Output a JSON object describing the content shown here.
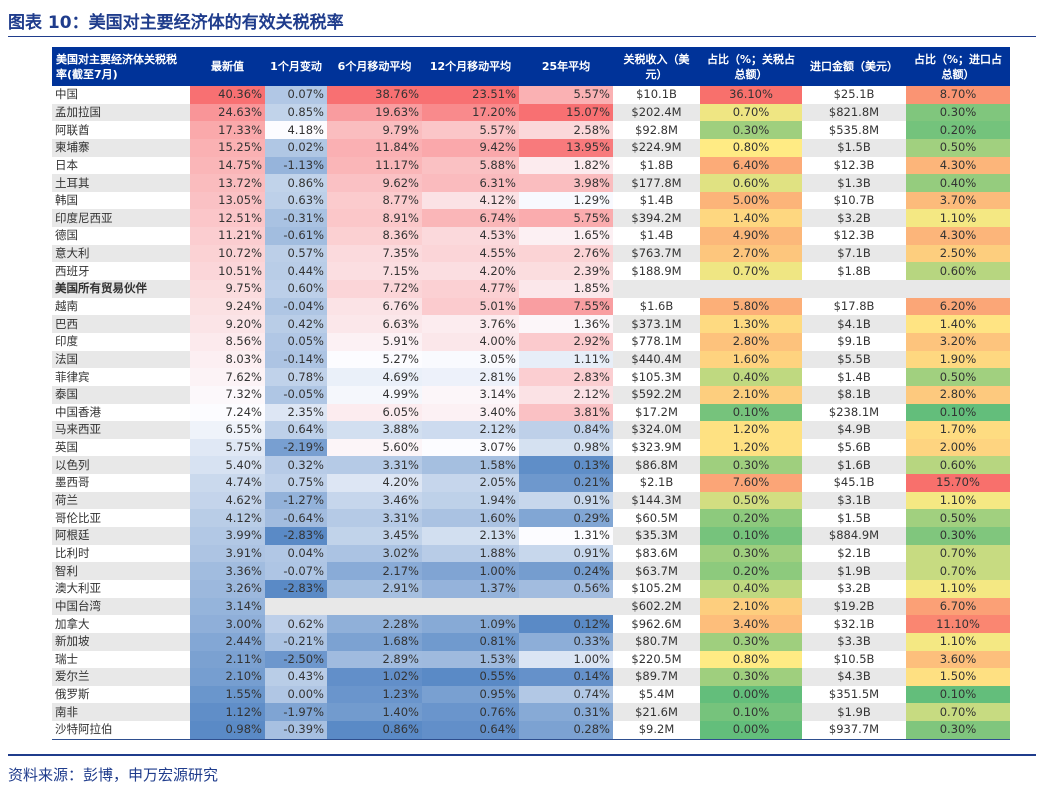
{
  "title": "图表 10：美国对主要经济体的有效关税税率",
  "source": "资料来源：彭博，申万宏源研究",
  "colors": {
    "header_bg": "#003399",
    "rate_low": "#5a8ac6",
    "rate_mid": "#fcfcff",
    "rate_high": "#f8696b",
    "share_low": "#63be7b",
    "share_mid": "#ffeb84",
    "share_high": "#f8696b",
    "stripe": "#e8e8e8"
  },
  "columns": [
    "美国对主要经济体关税税率(截至7月)",
    "最新值",
    "1个月变动",
    "6个月移动平均",
    "12个月移动平均",
    "25年平均",
    "关税收入（美元）",
    "占比（%；关税占总额）",
    "进口金额（美元）",
    "占比（%；进口占总额）"
  ],
  "rows": [
    [
      "中国",
      "40.36%",
      "0.07%",
      "38.76%",
      "23.51%",
      "5.57%",
      "$10.1B",
      "36.10%",
      "$25.1B",
      "8.70%"
    ],
    [
      "孟加拉国",
      "24.63%",
      "0.85%",
      "19.63%",
      "17.20%",
      "15.07%",
      "$202.4M",
      "0.70%",
      "$821.8M",
      "0.30%"
    ],
    [
      "阿联酋",
      "17.33%",
      "4.18%",
      "9.79%",
      "5.57%",
      "2.58%",
      "$92.8M",
      "0.30%",
      "$535.8M",
      "0.20%"
    ],
    [
      "柬埔寨",
      "15.25%",
      "0.02%",
      "11.84%",
      "9.42%",
      "13.95%",
      "$224.9M",
      "0.80%",
      "$1.5B",
      "0.50%"
    ],
    [
      "日本",
      "14.75%",
      "-1.13%",
      "11.17%",
      "5.88%",
      "1.82%",
      "$1.8B",
      "6.40%",
      "$12.3B",
      "4.30%"
    ],
    [
      "土耳其",
      "13.72%",
      "0.86%",
      "9.62%",
      "6.31%",
      "3.98%",
      "$177.8M",
      "0.60%",
      "$1.3B",
      "0.40%"
    ],
    [
      "韩国",
      "13.05%",
      "0.63%",
      "8.77%",
      "4.12%",
      "1.29%",
      "$1.4B",
      "5.00%",
      "$10.7B",
      "3.70%"
    ],
    [
      "印度尼西亚",
      "12.51%",
      "-0.31%",
      "8.91%",
      "6.74%",
      "5.75%",
      "$394.2M",
      "1.40%",
      "$3.2B",
      "1.10%"
    ],
    [
      "德国",
      "11.21%",
      "-0.61%",
      "8.36%",
      "4.53%",
      "1.65%",
      "$1.4B",
      "4.90%",
      "$12.3B",
      "4.30%"
    ],
    [
      "意大利",
      "10.72%",
      "0.57%",
      "7.35%",
      "4.55%",
      "2.76%",
      "$763.7M",
      "2.70%",
      "$7.1B",
      "2.50%"
    ],
    [
      "西班牙",
      "10.51%",
      "0.44%",
      "7.15%",
      "4.20%",
      "2.39%",
      "$188.9M",
      "0.70%",
      "$1.8B",
      "0.60%"
    ],
    [
      "美国所有贸易伙伴",
      "9.75%",
      "0.60%",
      "7.72%",
      "4.77%",
      "1.85%",
      "",
      "",
      "",
      ""
    ],
    [
      "越南",
      "9.24%",
      "-0.04%",
      "6.76%",
      "5.01%",
      "7.55%",
      "$1.6B",
      "5.80%",
      "$17.8B",
      "6.20%"
    ],
    [
      "巴西",
      "9.20%",
      "0.42%",
      "6.63%",
      "3.76%",
      "1.36%",
      "$373.1M",
      "1.30%",
      "$4.1B",
      "1.40%"
    ],
    [
      "印度",
      "8.56%",
      "0.05%",
      "5.91%",
      "4.00%",
      "2.92%",
      "$778.1M",
      "2.80%",
      "$9.1B",
      "3.20%"
    ],
    [
      "法国",
      "8.03%",
      "-0.14%",
      "5.27%",
      "3.05%",
      "1.11%",
      "$440.4M",
      "1.60%",
      "$5.5B",
      "1.90%"
    ],
    [
      "菲律宾",
      "7.62%",
      "0.78%",
      "4.69%",
      "2.81%",
      "2.83%",
      "$105.3M",
      "0.40%",
      "$1.4B",
      "0.50%"
    ],
    [
      "泰国",
      "7.32%",
      "-0.05%",
      "4.99%",
      "3.14%",
      "2.12%",
      "$592.2M",
      "2.10%",
      "$8.1B",
      "2.80%"
    ],
    [
      "中国香港",
      "7.24%",
      "2.35%",
      "6.05%",
      "3.40%",
      "3.81%",
      "$17.2M",
      "0.10%",
      "$238.1M",
      "0.10%"
    ],
    [
      "马来西亚",
      "6.55%",
      "0.64%",
      "3.88%",
      "2.12%",
      "0.84%",
      "$324.0M",
      "1.20%",
      "$4.9B",
      "1.70%"
    ],
    [
      "英国",
      "5.75%",
      "-2.19%",
      "5.60%",
      "3.07%",
      "0.98%",
      "$323.9M",
      "1.20%",
      "$5.6B",
      "2.00%"
    ],
    [
      "以色列",
      "5.40%",
      "0.32%",
      "3.31%",
      "1.58%",
      "0.13%",
      "$86.8M",
      "0.30%",
      "$1.6B",
      "0.60%"
    ],
    [
      "墨西哥",
      "4.74%",
      "0.75%",
      "4.20%",
      "2.05%",
      "0.21%",
      "$2.1B",
      "7.60%",
      "$45.1B",
      "15.70%"
    ],
    [
      "荷兰",
      "4.62%",
      "-1.27%",
      "3.46%",
      "1.94%",
      "0.91%",
      "$144.3M",
      "0.50%",
      "$3.1B",
      "1.10%"
    ],
    [
      "哥伦比亚",
      "4.12%",
      "-0.64%",
      "3.31%",
      "1.60%",
      "0.29%",
      "$60.5M",
      "0.20%",
      "$1.5B",
      "0.50%"
    ],
    [
      "阿根廷",
      "3.99%",
      "-2.83%",
      "3.45%",
      "2.13%",
      "1.31%",
      "$35.3M",
      "0.10%",
      "$884.9M",
      "0.30%"
    ],
    [
      "比利时",
      "3.91%",
      "0.04%",
      "3.02%",
      "1.88%",
      "0.91%",
      "$83.6M",
      "0.30%",
      "$2.1B",
      "0.70%"
    ],
    [
      "智利",
      "3.36%",
      "-0.07%",
      "2.17%",
      "1.00%",
      "0.24%",
      "$63.7M",
      "0.20%",
      "$1.9B",
      "0.70%"
    ],
    [
      "澳大利亚",
      "3.26%",
      "-2.83%",
      "2.91%",
      "1.37%",
      "0.56%",
      "$105.2M",
      "0.40%",
      "$3.2B",
      "1.10%"
    ],
    [
      "中国台湾",
      "3.14%",
      "",
      "",
      "",
      "",
      "$602.2M",
      "2.10%",
      "$19.2B",
      "6.70%"
    ],
    [
      "加拿大",
      "3.00%",
      "0.62%",
      "2.28%",
      "1.09%",
      "0.12%",
      "$962.6M",
      "3.40%",
      "$32.1B",
      "11.10%"
    ],
    [
      "新加坡",
      "2.44%",
      "-0.21%",
      "1.68%",
      "0.81%",
      "0.33%",
      "$80.7M",
      "0.30%",
      "$3.3B",
      "1.10%"
    ],
    [
      "瑞士",
      "2.11%",
      "-2.50%",
      "2.89%",
      "1.53%",
      "1.00%",
      "$220.5M",
      "0.80%",
      "$10.5B",
      "3.60%"
    ],
    [
      "爱尔兰",
      "2.10%",
      "0.43%",
      "1.02%",
      "0.55%",
      "0.14%",
      "$89.7M",
      "0.30%",
      "$4.3B",
      "1.50%"
    ],
    [
      "俄罗斯",
      "1.55%",
      "0.00%",
      "1.23%",
      "0.95%",
      "0.74%",
      "$5.4M",
      "0.00%",
      "$351.5M",
      "0.10%"
    ],
    [
      "南非",
      "1.12%",
      "-1.97%",
      "1.40%",
      "0.76%",
      "0.31%",
      "$21.6M",
      "0.10%",
      "$1.9B",
      "0.70%"
    ],
    [
      "沙特阿拉伯",
      "0.98%",
      "-0.39%",
      "0.86%",
      "0.64%",
      "0.28%",
      "$9.2M",
      "0.00%",
      "$937.7M",
      "0.30%"
    ]
  ],
  "bold_rows": [
    "美国所有贸易伙伴"
  ]
}
